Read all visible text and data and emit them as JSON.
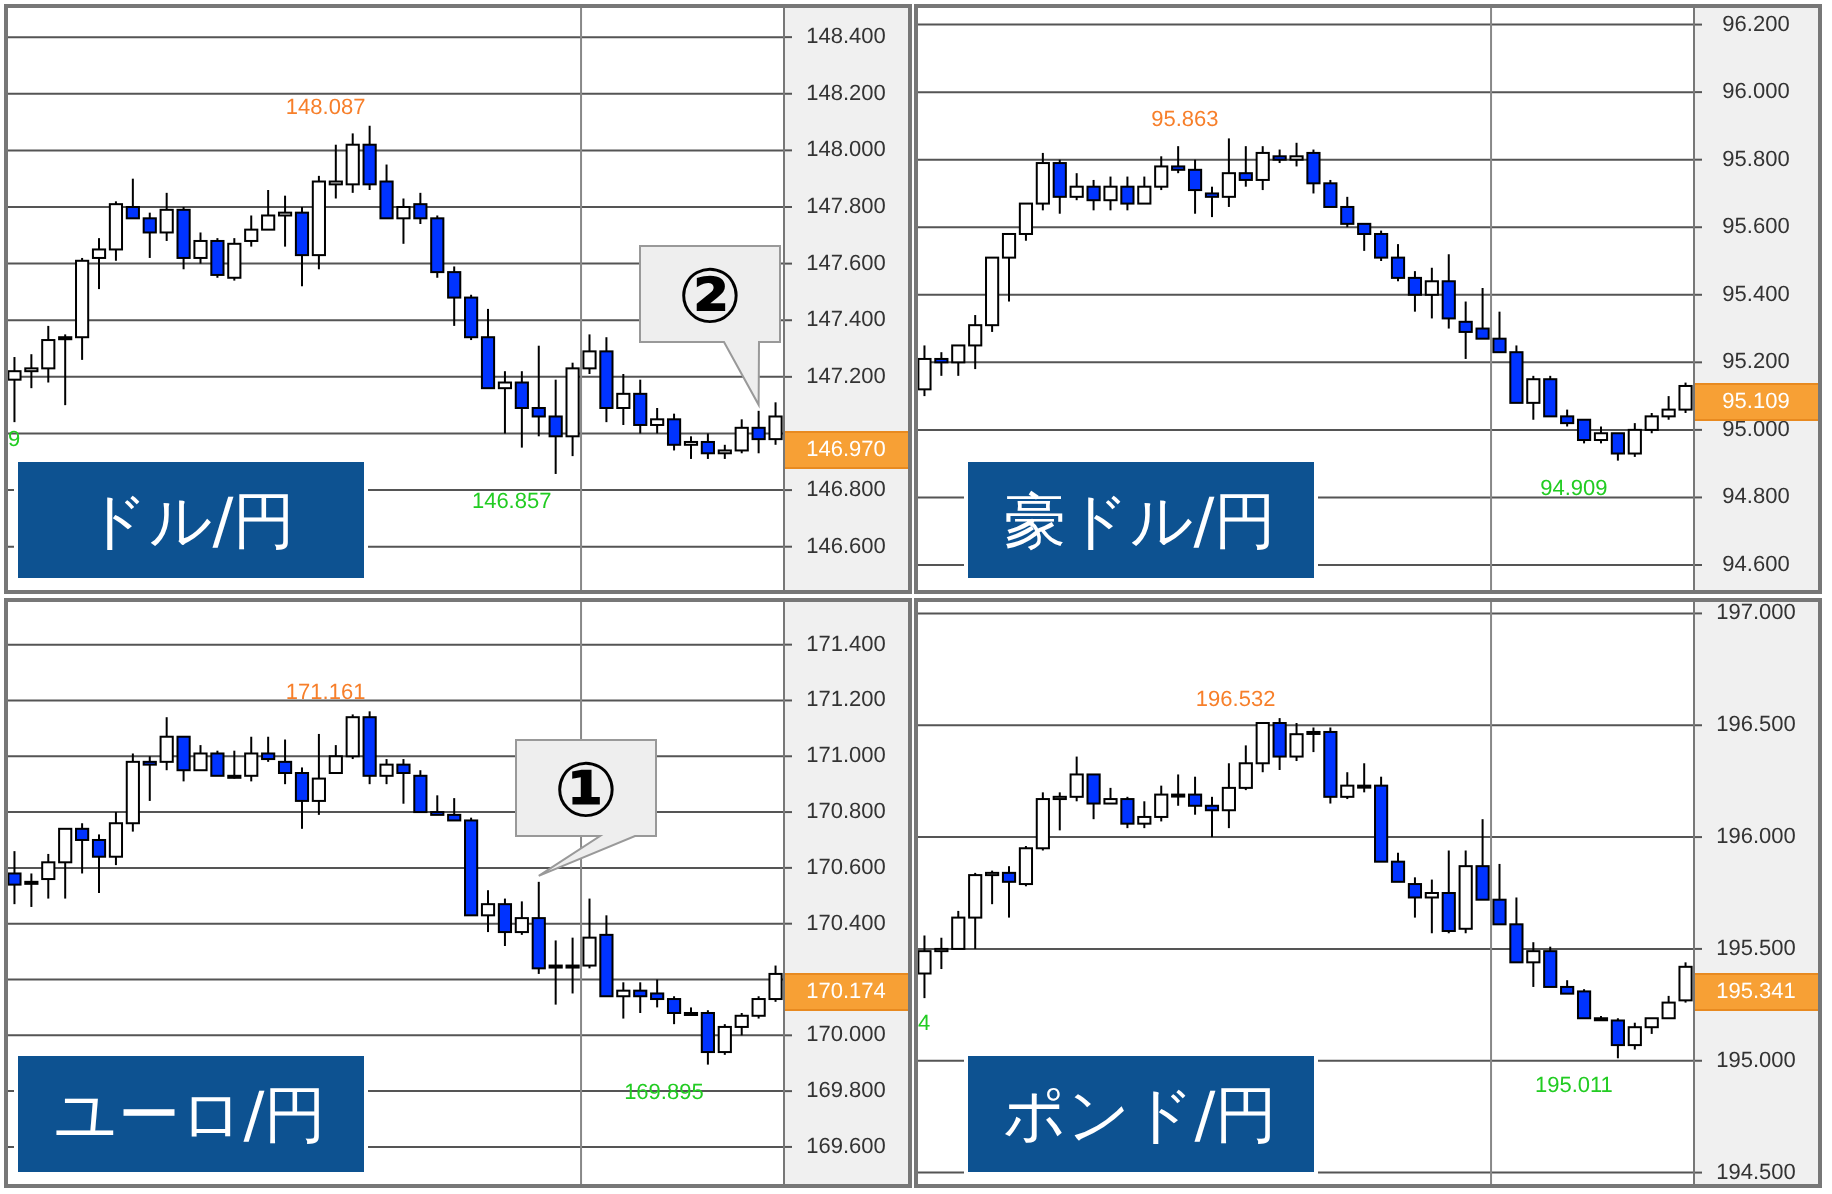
{
  "chart_data": [
    {
      "type": "candlestick",
      "title": "ドル/円",
      "categories": [
        null,
        null,
        null,
        null,
        null,
        null,
        null,
        null,
        null,
        null,
        null,
        null,
        null,
        null,
        null,
        null,
        null,
        null,
        null,
        null,
        null,
        null,
        null,
        null,
        null,
        null,
        null,
        null,
        null,
        null,
        null,
        null,
        null,
        null,
        null,
        null,
        null,
        null,
        null,
        null,
        null,
        null,
        null,
        null,
        null,
        null
      ],
      "ohlc": [
        [
          147.19,
          147.27,
          147.04,
          147.22
        ],
        [
          147.22,
          147.28,
          147.16,
          147.23
        ],
        [
          147.23,
          147.38,
          147.18,
          147.33
        ],
        [
          147.34,
          147.35,
          147.1,
          147.34
        ],
        [
          147.34,
          147.62,
          147.26,
          147.61
        ],
        [
          147.62,
          147.69,
          147.51,
          147.65
        ],
        [
          147.65,
          147.82,
          147.61,
          147.81
        ],
        [
          147.8,
          147.9,
          147.76,
          147.76
        ],
        [
          147.76,
          147.78,
          147.62,
          147.71
        ],
        [
          147.71,
          147.85,
          147.68,
          147.79
        ],
        [
          147.79,
          147.8,
          147.58,
          147.62
        ],
        [
          147.62,
          147.71,
          147.6,
          147.68
        ],
        [
          147.68,
          147.69,
          147.55,
          147.56
        ],
        [
          147.55,
          147.69,
          147.54,
          147.67
        ],
        [
          147.68,
          147.77,
          147.66,
          147.72
        ],
        [
          147.72,
          147.86,
          147.72,
          147.77
        ],
        [
          147.77,
          147.84,
          147.66,
          147.78
        ],
        [
          147.78,
          147.8,
          147.52,
          147.63
        ],
        [
          147.63,
          147.91,
          147.58,
          147.89
        ],
        [
          147.88,
          148.02,
          147.83,
          147.89
        ],
        [
          147.88,
          148.06,
          147.85,
          148.02
        ],
        [
          148.02,
          148.087,
          147.86,
          147.88
        ],
        [
          147.89,
          147.95,
          147.76,
          147.76
        ],
        [
          147.76,
          147.83,
          147.67,
          147.8
        ],
        [
          147.81,
          147.85,
          147.74,
          147.76
        ],
        [
          147.76,
          147.77,
          147.55,
          147.57
        ],
        [
          147.57,
          147.59,
          147.38,
          147.48
        ],
        [
          147.48,
          147.49,
          147.33,
          147.34
        ],
        [
          147.34,
          147.44,
          147.16,
          147.16
        ],
        [
          147.16,
          147.22,
          147.0,
          147.18
        ],
        [
          147.18,
          147.22,
          146.95,
          147.09
        ],
        [
          147.09,
          147.31,
          146.99,
          147.06
        ],
        [
          147.06,
          147.19,
          146.857,
          146.99
        ],
        [
          146.99,
          147.25,
          146.92,
          147.23
        ],
        [
          147.23,
          147.35,
          147.21,
          147.29
        ],
        [
          147.29,
          147.34,
          147.04,
          147.09
        ],
        [
          147.09,
          147.21,
          147.03,
          147.14
        ],
        [
          147.14,
          147.19,
          147.0,
          147.03
        ],
        [
          147.03,
          147.09,
          147.0,
          147.05
        ],
        [
          147.05,
          147.07,
          146.94,
          146.96
        ],
        [
          146.96,
          146.99,
          146.91,
          146.97
        ],
        [
          146.97,
          147.0,
          146.91,
          146.93
        ],
        [
          146.93,
          146.96,
          146.91,
          146.94
        ],
        [
          146.94,
          147.05,
          146.93,
          147.02
        ],
        [
          147.02,
          147.08,
          146.93,
          146.98
        ],
        [
          146.98,
          147.11,
          146.96,
          147.06
        ]
      ],
      "ylim": [
        146.44,
        148.51
      ],
      "yticks": [
        {
          "value": 146.6,
          "label": "146.600"
        },
        {
          "value": 146.8,
          "label": "146.800"
        },
        {
          "value": 147.0,
          "label": null
        },
        {
          "value": 147.2,
          "label": "147.200"
        },
        {
          "value": 147.4,
          "label": "147.400"
        },
        {
          "value": 147.6,
          "label": "147.600"
        },
        {
          "value": 147.8,
          "label": "147.800"
        },
        {
          "value": 148.0,
          "label": "148.000"
        },
        {
          "value": 148.2,
          "label": "148.200"
        },
        {
          "value": 148.4,
          "label": "148.400"
        }
      ],
      "tick_labels": "y",
      "grid": "y",
      "annotations": [
        "148.087",
        "146.857",
        "9",
        "②",
        "146.970"
      ]
    },
    {
      "type": "candlestick",
      "title": "豪ドル/円",
      "categories": [
        null,
        null,
        null,
        null,
        null,
        null,
        null,
        null,
        null,
        null,
        null,
        null,
        null,
        null,
        null,
        null,
        null,
        null,
        null,
        null,
        null,
        null,
        null,
        null,
        null,
        null,
        null,
        null,
        null,
        null,
        null,
        null,
        null,
        null,
        null,
        null,
        null,
        null,
        null,
        null,
        null,
        null,
        null,
        null,
        null,
        null
      ],
      "ohlc": [
        [
          95.12,
          95.25,
          95.1,
          95.21
        ],
        [
          95.21,
          95.23,
          95.16,
          95.2
        ],
        [
          95.2,
          95.25,
          95.16,
          95.25
        ],
        [
          95.25,
          95.34,
          95.18,
          95.31
        ],
        [
          95.31,
          95.51,
          95.29,
          95.51
        ],
        [
          95.51,
          95.58,
          95.38,
          95.58
        ],
        [
          95.58,
          95.67,
          95.56,
          95.67
        ],
        [
          95.67,
          95.82,
          95.65,
          95.79
        ],
        [
          95.79,
          95.8,
          95.64,
          95.69
        ],
        [
          95.69,
          95.76,
          95.68,
          95.72
        ],
        [
          95.72,
          95.74,
          95.65,
          95.68
        ],
        [
          95.68,
          95.75,
          95.65,
          95.72
        ],
        [
          95.72,
          95.75,
          95.65,
          95.67
        ],
        [
          95.67,
          95.75,
          95.67,
          95.72
        ],
        [
          95.72,
          95.81,
          95.71,
          95.78
        ],
        [
          95.78,
          95.84,
          95.76,
          95.77
        ],
        [
          95.77,
          95.8,
          95.64,
          95.71
        ],
        [
          95.7,
          95.72,
          95.63,
          95.69
        ],
        [
          95.69,
          95.863,
          95.66,
          95.76
        ],
        [
          95.76,
          95.84,
          95.72,
          95.74
        ],
        [
          95.74,
          95.84,
          95.71,
          95.82
        ],
        [
          95.81,
          95.83,
          95.79,
          95.8
        ],
        [
          95.8,
          95.85,
          95.78,
          95.81
        ],
        [
          95.82,
          95.83,
          95.7,
          95.73
        ],
        [
          95.73,
          95.74,
          95.66,
          95.66
        ],
        [
          95.66,
          95.69,
          95.6,
          95.61
        ],
        [
          95.61,
          95.61,
          95.53,
          95.58
        ],
        [
          95.58,
          95.59,
          95.5,
          95.51
        ],
        [
          95.51,
          95.55,
          95.44,
          95.45
        ],
        [
          95.45,
          95.47,
          95.35,
          95.4
        ],
        [
          95.4,
          95.48,
          95.33,
          95.44
        ],
        [
          95.44,
          95.52,
          95.3,
          95.33
        ],
        [
          95.32,
          95.38,
          95.21,
          95.29
        ],
        [
          95.3,
          95.42,
          95.27,
          95.27
        ],
        [
          95.27,
          95.35,
          95.23,
          95.23
        ],
        [
          95.23,
          95.25,
          95.08,
          95.08
        ],
        [
          95.08,
          95.16,
          95.03,
          95.15
        ],
        [
          95.15,
          95.16,
          95.04,
          95.04
        ],
        [
          95.04,
          95.06,
          95.01,
          95.02
        ],
        [
          95.03,
          95.03,
          94.96,
          94.97
        ],
        [
          94.97,
          95.01,
          94.96,
          94.99
        ],
        [
          94.99,
          94.99,
          94.909,
          94.93
        ],
        [
          94.93,
          95.02,
          94.92,
          95.0
        ],
        [
          95.0,
          95.05,
          94.99,
          95.04
        ],
        [
          95.04,
          95.1,
          95.03,
          95.06
        ],
        [
          95.06,
          95.14,
          95.05,
          95.13
        ]
      ],
      "ylim": [
        94.52,
        96.255
      ],
      "yticks": [
        {
          "value": 94.6,
          "label": "94.600"
        },
        {
          "value": 94.8,
          "label": "94.800"
        },
        {
          "value": 95.0,
          "label": "95.000"
        },
        {
          "value": 95.2,
          "label": "95.200"
        },
        {
          "value": 95.4,
          "label": "95.400"
        },
        {
          "value": 95.6,
          "label": "95.600"
        },
        {
          "value": 95.8,
          "label": "95.800"
        },
        {
          "value": 96.0,
          "label": "96.000"
        },
        {
          "value": 96.2,
          "label": "96.200"
        }
      ],
      "tick_labels": "y",
      "grid": "y",
      "annotations": [
        "95.863",
        "94.909",
        "95.109"
      ]
    },
    {
      "type": "candlestick",
      "title": "ユーロ/円",
      "categories": [
        null,
        null,
        null,
        null,
        null,
        null,
        null,
        null,
        null,
        null,
        null,
        null,
        null,
        null,
        null,
        null,
        null,
        null,
        null,
        null,
        null,
        null,
        null,
        null,
        null,
        null,
        null,
        null,
        null,
        null,
        null,
        null,
        null,
        null,
        null,
        null,
        null,
        null,
        null,
        null,
        null,
        null,
        null,
        null,
        null,
        null
      ],
      "ohlc": [
        [
          170.58,
          170.66,
          170.47,
          170.54
        ],
        [
          170.55,
          170.58,
          170.46,
          170.55
        ],
        [
          170.56,
          170.65,
          170.49,
          170.62
        ],
        [
          170.62,
          170.74,
          170.49,
          170.74
        ],
        [
          170.74,
          170.76,
          170.58,
          170.7
        ],
        [
          170.7,
          170.72,
          170.51,
          170.64
        ],
        [
          170.64,
          170.8,
          170.61,
          170.76
        ],
        [
          170.76,
          171.01,
          170.73,
          170.98
        ],
        [
          170.98,
          171.0,
          170.84,
          170.97
        ],
        [
          170.98,
          171.14,
          170.95,
          171.07
        ],
        [
          171.07,
          171.07,
          170.91,
          170.95
        ],
        [
          170.95,
          171.04,
          170.95,
          171.01
        ],
        [
          171.01,
          171.02,
          170.93,
          170.93
        ],
        [
          170.93,
          171.02,
          170.92,
          170.93
        ],
        [
          170.93,
          171.07,
          170.91,
          171.01
        ],
        [
          171.01,
          171.07,
          170.98,
          170.99
        ],
        [
          170.98,
          171.06,
          170.9,
          170.94
        ],
        [
          170.94,
          170.96,
          170.74,
          170.84
        ],
        [
          170.84,
          171.08,
          170.79,
          170.92
        ],
        [
          170.94,
          171.04,
          170.94,
          171.0
        ],
        [
          171.0,
          171.15,
          170.99,
          171.14
        ],
        [
          171.14,
          171.161,
          170.9,
          170.93
        ],
        [
          170.93,
          170.99,
          170.9,
          170.97
        ],
        [
          170.97,
          170.99,
          170.83,
          170.94
        ],
        [
          170.93,
          170.95,
          170.8,
          170.8
        ],
        [
          170.8,
          170.86,
          170.79,
          170.79
        ],
        [
          170.79,
          170.85,
          170.77,
          170.77
        ],
        [
          170.77,
          170.78,
          170.43,
          170.43
        ],
        [
          170.43,
          170.52,
          170.37,
          170.47
        ],
        [
          170.47,
          170.49,
          170.32,
          170.37
        ],
        [
          170.37,
          170.48,
          170.36,
          170.42
        ],
        [
          170.42,
          170.55,
          170.22,
          170.24
        ],
        [
          170.25,
          170.34,
          170.11,
          170.25
        ],
        [
          170.25,
          170.35,
          170.15,
          170.25
        ],
        [
          170.25,
          170.49,
          170.24,
          170.35
        ],
        [
          170.36,
          170.43,
          170.14,
          170.14
        ],
        [
          170.14,
          170.19,
          170.06,
          170.16
        ],
        [
          170.16,
          170.19,
          170.08,
          170.14
        ],
        [
          170.15,
          170.2,
          170.1,
          170.13
        ],
        [
          170.13,
          170.14,
          170.04,
          170.08
        ],
        [
          170.08,
          170.1,
          170.07,
          170.08
        ],
        [
          170.08,
          170.09,
          169.895,
          169.94
        ],
        [
          169.94,
          170.04,
          169.93,
          170.03
        ],
        [
          170.03,
          170.08,
          170.0,
          170.07
        ],
        [
          170.07,
          170.14,
          170.06,
          170.13
        ],
        [
          170.13,
          170.25,
          170.12,
          170.22
        ]
      ],
      "ylim": [
        169.46,
        171.56
      ],
      "yticks": [
        {
          "value": 169.6,
          "label": "169.600"
        },
        {
          "value": 169.8,
          "label": "169.800"
        },
        {
          "value": 170.0,
          "label": "170.000"
        },
        {
          "value": 170.2,
          "label": null
        },
        {
          "value": 170.4,
          "label": "170.400"
        },
        {
          "value": 170.6,
          "label": "170.600"
        },
        {
          "value": 170.8,
          "label": "170.800"
        },
        {
          "value": 171.0,
          "label": "171.000"
        },
        {
          "value": 171.2,
          "label": "171.200"
        },
        {
          "value": 171.4,
          "label": "171.400"
        }
      ],
      "tick_labels": "y",
      "grid": "y",
      "annotations": [
        "171.161",
        "169.895",
        "①",
        "170.174"
      ]
    },
    {
      "type": "candlestick",
      "title": "ポンド/円",
      "categories": [
        null,
        null,
        null,
        null,
        null,
        null,
        null,
        null,
        null,
        null,
        null,
        null,
        null,
        null,
        null,
        null,
        null,
        null,
        null,
        null,
        null,
        null,
        null,
        null,
        null,
        null,
        null,
        null,
        null,
        null,
        null,
        null,
        null,
        null,
        null,
        null,
        null,
        null,
        null,
        null,
        null,
        null,
        null,
        null,
        null,
        null
      ],
      "ohlc": [
        [
          195.39,
          195.56,
          195.28,
          195.49
        ],
        [
          195.49,
          195.55,
          195.41,
          195.5
        ],
        [
          195.5,
          195.67,
          195.5,
          195.64
        ],
        [
          195.64,
          195.84,
          195.5,
          195.83
        ],
        [
          195.83,
          195.85,
          195.7,
          195.84
        ],
        [
          195.84,
          195.87,
          195.64,
          195.8
        ],
        [
          195.79,
          195.96,
          195.78,
          195.95
        ],
        [
          195.95,
          196.2,
          195.94,
          196.17
        ],
        [
          196.17,
          196.2,
          196.03,
          196.18
        ],
        [
          196.18,
          196.36,
          196.16,
          196.28
        ],
        [
          196.28,
          196.28,
          196.08,
          196.15
        ],
        [
          196.15,
          196.22,
          196.15,
          196.17
        ],
        [
          196.17,
          196.18,
          196.04,
          196.06
        ],
        [
          196.06,
          196.16,
          196.04,
          196.09
        ],
        [
          196.09,
          196.23,
          196.07,
          196.19
        ],
        [
          196.19,
          196.28,
          196.14,
          196.19
        ],
        [
          196.19,
          196.27,
          196.1,
          196.14
        ],
        [
          196.14,
          196.18,
          196.0,
          196.12
        ],
        [
          196.12,
          196.33,
          196.04,
          196.22
        ],
        [
          196.22,
          196.41,
          196.21,
          196.33
        ],
        [
          196.33,
          196.51,
          196.29,
          196.51
        ],
        [
          196.51,
          196.532,
          196.3,
          196.36
        ],
        [
          196.36,
          196.51,
          196.34,
          196.46
        ],
        [
          196.47,
          196.49,
          196.38,
          196.47
        ],
        [
          196.47,
          196.49,
          196.15,
          196.18
        ],
        [
          196.18,
          196.29,
          196.17,
          196.23
        ],
        [
          196.23,
          196.33,
          196.2,
          196.23
        ],
        [
          196.23,
          196.27,
          195.89,
          195.89
        ],
        [
          195.89,
          195.93,
          195.8,
          195.8
        ],
        [
          195.79,
          195.82,
          195.64,
          195.73
        ],
        [
          195.73,
          195.81,
          195.57,
          195.75
        ],
        [
          195.75,
          195.94,
          195.57,
          195.58
        ],
        [
          195.59,
          195.94,
          195.57,
          195.87
        ],
        [
          195.87,
          196.08,
          195.72,
          195.72
        ],
        [
          195.72,
          195.88,
          195.61,
          195.61
        ],
        [
          195.61,
          195.73,
          195.44,
          195.44
        ],
        [
          195.44,
          195.53,
          195.33,
          195.49
        ],
        [
          195.49,
          195.51,
          195.33,
          195.33
        ],
        [
          195.33,
          195.36,
          195.3,
          195.3
        ],
        [
          195.31,
          195.32,
          195.19,
          195.19
        ],
        [
          195.19,
          195.2,
          195.18,
          195.19
        ],
        [
          195.18,
          195.19,
          195.011,
          195.07
        ],
        [
          195.07,
          195.17,
          195.05,
          195.15
        ],
        [
          195.15,
          195.19,
          195.12,
          195.19
        ],
        [
          195.19,
          195.29,
          195.19,
          195.26
        ],
        [
          195.27,
          195.44,
          195.26,
          195.42
        ]
      ],
      "ylim": [
        194.44,
        197.06
      ],
      "yticks": [
        {
          "value": 194.5,
          "label": "194.500"
        },
        {
          "value": 195.0,
          "label": "195.000"
        },
        {
          "value": 195.5,
          "label": "195.500"
        },
        {
          "value": 196.0,
          "label": "196.000"
        },
        {
          "value": 196.5,
          "label": "196.500"
        },
        {
          "value": 197.0,
          "label": "197.000"
        }
      ],
      "tick_labels": "y",
      "grid": "y",
      "annotations": [
        "196.532",
        "195.011",
        "4",
        "195.341"
      ]
    }
  ]
}
